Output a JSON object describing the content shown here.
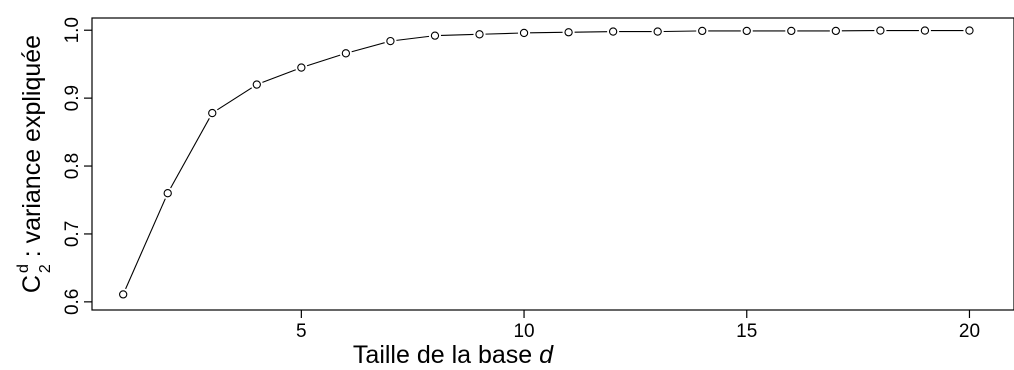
{
  "chart_data": {
    "type": "line",
    "xlabel": "Taille de la base ",
    "xlabel_italic": "d",
    "ylabel_symbol": "C",
    "ylabel_superscript": "d",
    "ylabel_subscript": "2",
    "ylabel_text": " : variance expliquée",
    "xlim": [
      0.3,
      21.0
    ],
    "ylim": [
      0.588,
      1.018
    ],
    "x_ticks": [
      5,
      10,
      15,
      20
    ],
    "y_ticks": [
      0.6,
      0.7,
      0.8,
      0.9,
      1.0
    ],
    "y_tick_labels": [
      "0.6",
      "0.7",
      "0.8",
      "0.9",
      "1.0"
    ],
    "grid": false,
    "legend": "none",
    "marker": "open-circle",
    "line_color": "#000000",
    "series": [
      {
        "x": [
          1,
          2,
          3,
          4,
          5,
          6,
          7,
          8,
          9,
          10,
          11,
          12,
          13,
          14,
          15,
          16,
          17,
          18,
          19,
          20
        ],
        "values": [
          0.611,
          0.76,
          0.878,
          0.92,
          0.945,
          0.966,
          0.984,
          0.992,
          0.994,
          0.996,
          0.997,
          0.998,
          0.998,
          0.999,
          0.999,
          0.999,
          0.999,
          0.9995,
          0.9995,
          0.9995
        ]
      }
    ]
  }
}
